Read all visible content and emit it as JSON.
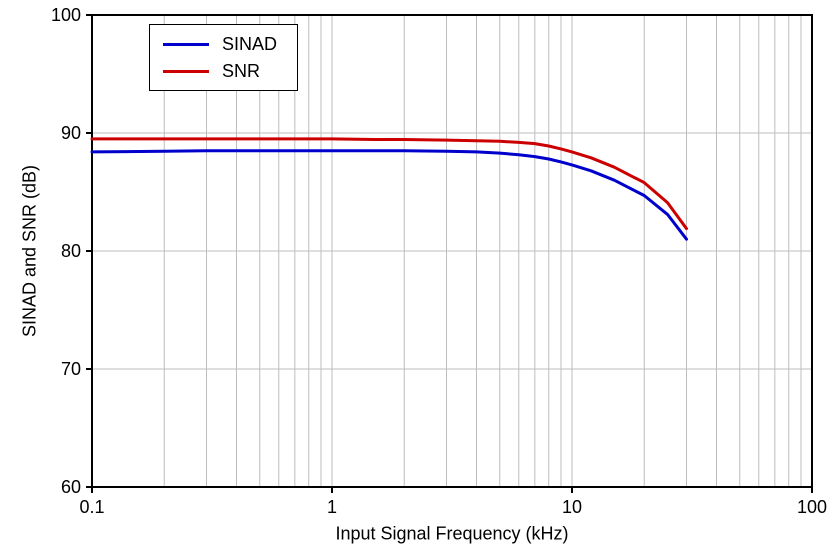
{
  "chart_data": {
    "type": "line",
    "title": "",
    "xlabel": "Input Signal Frequency (kHz)",
    "ylabel": "SINAD and SNR (dB)",
    "xscale": "log",
    "xlim": [
      0.1,
      100
    ],
    "ylim": [
      60,
      100
    ],
    "x_ticks": [
      0.1,
      1,
      10,
      100
    ],
    "x_tick_labels": [
      "0.1",
      "1",
      "10",
      "100"
    ],
    "y_ticks": [
      60,
      70,
      80,
      90,
      100
    ],
    "y_tick_labels": [
      "60",
      "70",
      "80",
      "90",
      "100"
    ],
    "grid": true,
    "grid_color": "#bdbdbd",
    "frame_color": "#000000",
    "legend": {
      "position": "top-left",
      "entries": [
        {
          "label": "SINAD",
          "color": "#0000cc"
        },
        {
          "label": "SNR",
          "color": "#cc0000"
        }
      ]
    },
    "x": [
      0.1,
      0.2,
      0.3,
      0.5,
      0.7,
      1,
      1.5,
      2,
      3,
      4,
      5,
      6,
      7,
      8,
      9,
      10,
      12,
      15,
      20,
      25,
      30
    ],
    "series": [
      {
        "name": "SINAD",
        "color": "#0000cc",
        "values": [
          88.4,
          88.45,
          88.5,
          88.5,
          88.5,
          88.5,
          88.5,
          88.5,
          88.45,
          88.4,
          88.3,
          88.15,
          88.0,
          87.8,
          87.55,
          87.3,
          86.8,
          86.0,
          84.7,
          83.1,
          81.0
        ]
      },
      {
        "name": "SNR",
        "color": "#cc0000",
        "values": [
          89.5,
          89.5,
          89.5,
          89.5,
          89.5,
          89.5,
          89.45,
          89.45,
          89.4,
          89.35,
          89.3,
          89.2,
          89.1,
          88.9,
          88.65,
          88.4,
          87.9,
          87.1,
          85.8,
          84.1,
          81.9
        ]
      }
    ]
  }
}
